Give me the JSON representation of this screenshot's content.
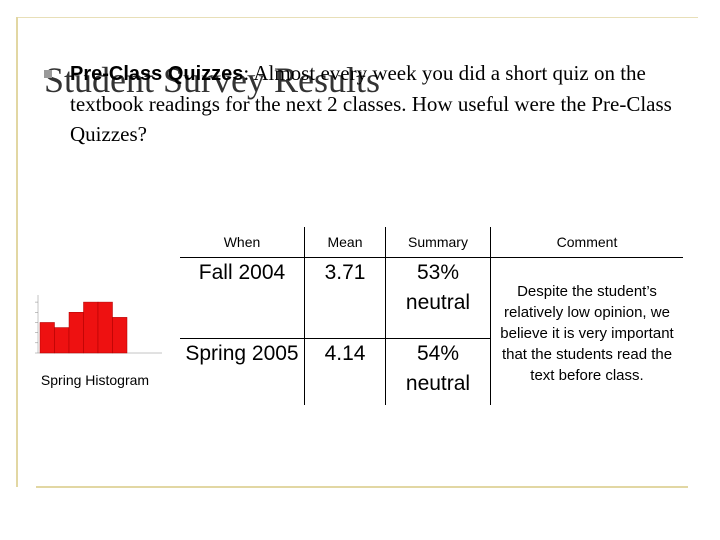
{
  "slide": {
    "title": "Student Survey Results",
    "bullet": {
      "lead": "Pre-Class Quizzes",
      "text": ": Almost every week you did a short quiz on the textbook readings for the next 2 classes. How useful were the Pre-Class Quizzes?"
    }
  },
  "table": {
    "headers": [
      "When",
      "Mean",
      "Summary",
      "Comment"
    ],
    "rows": [
      {
        "when": "Fall 2004",
        "mean": "3.71",
        "summary": "53% neutral"
      },
      {
        "when": "Spring 2005",
        "mean": "4.14",
        "summary": "54% neutral"
      }
    ],
    "comment": "Despite the student’s relatively low opinion, we believe it is very important that the students read the text before class."
  },
  "histogram": {
    "caption": "Spring Histogram",
    "values": [
      6,
      5,
      8,
      10,
      10,
      7
    ],
    "bar_color": "#ee1111"
  }
}
